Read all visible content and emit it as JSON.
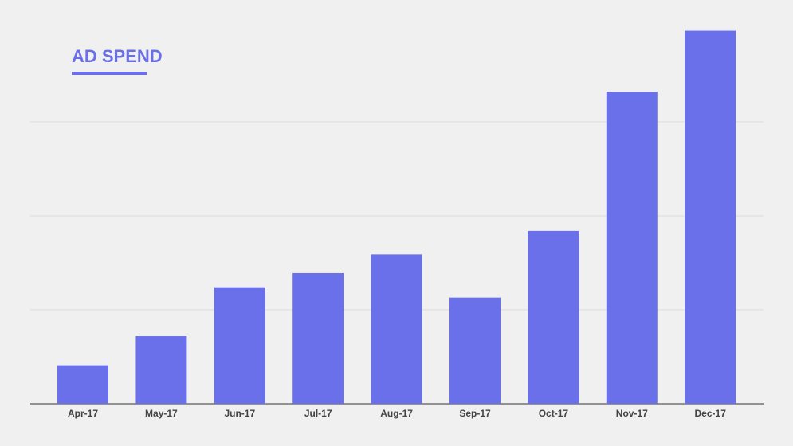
{
  "chart_data": {
    "type": "bar",
    "title": "AD SPEND",
    "categories": [
      "Apr-17",
      "May-17",
      "Jun-17",
      "Jul-17",
      "Aug-17",
      "Sep-17",
      "Oct-17",
      "Nov-17",
      "Dec-17"
    ],
    "values": [
      0.41,
      0.72,
      1.24,
      1.39,
      1.59,
      1.13,
      1.84,
      3.32,
      3.97
    ],
    "color": "#6970ea",
    "ylim": [
      0,
      4
    ],
    "yticks": [
      0,
      1,
      2,
      3
    ],
    "grid": true
  }
}
